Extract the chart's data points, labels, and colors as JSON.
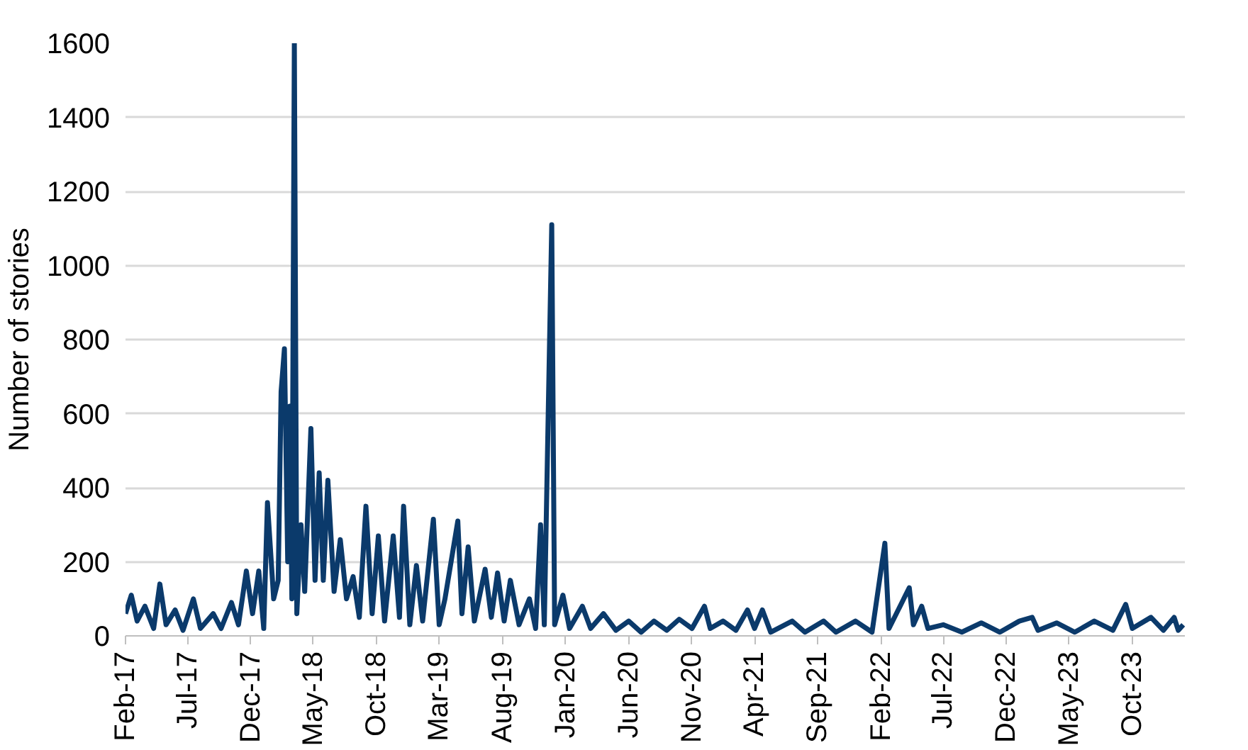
{
  "chart_data": {
    "type": "line",
    "ylabel": "Number of stories",
    "x": [
      "2017-02-01",
      "2017-02-15",
      "2017-03-01",
      "2017-03-20",
      "2017-04-10",
      "2017-04-25",
      "2017-05-10",
      "2017-06-01",
      "2017-06-20",
      "2017-07-15",
      "2017-08-01",
      "2017-09-01",
      "2017-09-20",
      "2017-10-15",
      "2017-11-01",
      "2017-11-20",
      "2017-12-05",
      "2017-12-20",
      "2018-01-01",
      "2018-01-10",
      "2018-01-25",
      "2018-02-05",
      "2018-02-12",
      "2018-02-20",
      "2018-02-28",
      "2018-03-05",
      "2018-03-10",
      "2018-03-16",
      "2018-03-22",
      "2018-04-01",
      "2018-04-10",
      "2018-04-25",
      "2018-05-05",
      "2018-05-15",
      "2018-05-25",
      "2018-06-05",
      "2018-06-20",
      "2018-07-05",
      "2018-07-20",
      "2018-08-05",
      "2018-08-20",
      "2018-09-05",
      "2018-09-20",
      "2018-10-05",
      "2018-10-20",
      "2018-11-10",
      "2018-11-25",
      "2018-12-05",
      "2018-12-20",
      "2019-01-05",
      "2019-01-20",
      "2019-02-15",
      "2019-03-01",
      "2019-03-15",
      "2019-04-15",
      "2019-04-25",
      "2019-05-10",
      "2019-05-25",
      "2019-06-20",
      "2019-07-05",
      "2019-07-20",
      "2019-08-05",
      "2019-08-20",
      "2019-09-10",
      "2019-10-05",
      "2019-10-20",
      "2019-11-01",
      "2019-11-10",
      "2019-11-28",
      "2019-12-05",
      "2019-12-25",
      "2020-01-10",
      "2020-02-10",
      "2020-03-01",
      "2020-04-01",
      "2020-05-01",
      "2020-06-01",
      "2020-07-01",
      "2020-08-01",
      "2020-09-01",
      "2020-10-01",
      "2020-11-01",
      "2020-12-01",
      "2020-12-15",
      "2021-01-15",
      "2021-02-15",
      "2021-03-15",
      "2021-04-01",
      "2021-04-20",
      "2021-05-10",
      "2021-07-01",
      "2021-08-01",
      "2021-09-15",
      "2021-10-15",
      "2021-12-01",
      "2022-01-10",
      "2022-02-10",
      "2022-02-20",
      "2022-04-01",
      "2022-04-10",
      "2022-04-20",
      "2022-05-10",
      "2022-05-25",
      "2022-07-01",
      "2022-08-15",
      "2022-10-01",
      "2022-11-15",
      "2023-01-01",
      "2023-02-01",
      "2023-02-15",
      "2023-04-01",
      "2023-05-15",
      "2023-07-01",
      "2023-08-15",
      "2023-09-15",
      "2023-10-01",
      "2023-11-15",
      "2023-12-15",
      "2024-01-10",
      "2024-01-20",
      "2024-02-01"
    ],
    "series": [
      {
        "color": "#0b3a6b",
        "values": [
          60,
          110,
          40,
          80,
          20,
          140,
          30,
          70,
          15,
          100,
          20,
          60,
          20,
          90,
          30,
          175,
          60,
          175,
          20,
          360,
          100,
          150,
          660,
          775,
          200,
          620,
          100,
          1600,
          60,
          300,
          120,
          560,
          150,
          440,
          150,
          420,
          120,
          260,
          100,
          160,
          50,
          350,
          60,
          270,
          40,
          270,
          50,
          350,
          30,
          190,
          40,
          315,
          30,
          100,
          310,
          60,
          240,
          40,
          180,
          50,
          170,
          40,
          150,
          30,
          100,
          20,
          300,
          30,
          1110,
          30,
          110,
          20,
          80,
          20,
          60,
          15,
          40,
          10,
          40,
          15,
          45,
          20,
          80,
          20,
          40,
          15,
          70,
          20,
          70,
          10,
          40,
          10,
          40,
          10,
          40,
          10,
          250,
          20,
          110,
          130,
          30,
          80,
          20,
          30,
          10,
          35,
          10,
          40,
          50,
          15,
          35,
          10,
          40,
          15,
          85,
          20,
          50,
          15,
          50,
          15,
          30
        ]
      }
    ],
    "xlim": [
      "2017-02-01",
      "2024-02-05"
    ],
    "xticks": [
      {
        "value": "2017-02-01",
        "label": "Feb-17"
      },
      {
        "value": "2017-07-01",
        "label": "Jul-17"
      },
      {
        "value": "2017-12-01",
        "label": "Dec-17"
      },
      {
        "value": "2018-05-01",
        "label": "May-18"
      },
      {
        "value": "2018-10-01",
        "label": "Oct-18"
      },
      {
        "value": "2019-03-01",
        "label": "Mar-19"
      },
      {
        "value": "2019-08-01",
        "label": "Aug-19"
      },
      {
        "value": "2020-01-01",
        "label": "Jan-20"
      },
      {
        "value": "2020-06-01",
        "label": "Jun-20"
      },
      {
        "value": "2020-11-01",
        "label": "Nov-20"
      },
      {
        "value": "2021-04-01",
        "label": "Apr-21"
      },
      {
        "value": "2021-09-01",
        "label": "Sep-21"
      },
      {
        "value": "2022-02-01",
        "label": "Feb-22"
      },
      {
        "value": "2022-07-01",
        "label": "Jul-22"
      },
      {
        "value": "2022-12-01",
        "label": "Dec-22"
      },
      {
        "value": "2023-05-01",
        "label": "May-23"
      },
      {
        "value": "2023-10-01",
        "label": "Oct-23"
      }
    ],
    "ylim": [
      0,
      1600
    ],
    "yticks": [
      0,
      200,
      400,
      600,
      800,
      1000,
      1200,
      1400,
      1600
    ],
    "grid": "y",
    "marker": "none",
    "line_style": "solid"
  }
}
